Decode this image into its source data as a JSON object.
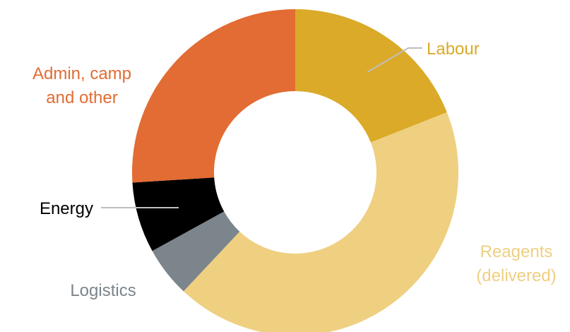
{
  "chart_data": {
    "type": "pie",
    "title": "",
    "slices": [
      {
        "label": "Labour",
        "value": 19,
        "color": "#DAAA28"
      },
      {
        "label": "Reagents (delivered)",
        "value": 43,
        "color": "#EFD081"
      },
      {
        "label": "Logistics",
        "value": 5,
        "color": "#7C858C"
      },
      {
        "label": "Energy",
        "value": 7,
        "color": "#000000"
      },
      {
        "label": "Admin, camp and other",
        "value": 26,
        "color": "#E26C33"
      }
    ],
    "labels": {
      "labour": "Labour",
      "reagents_1": "Reagents",
      "reagents_2": "(delivered)",
      "logistics": "Logistics",
      "energy": "Energy",
      "admin_1": "Admin, camp",
      "admin_2": "and other"
    },
    "leader_color": "#BFBFBF"
  }
}
